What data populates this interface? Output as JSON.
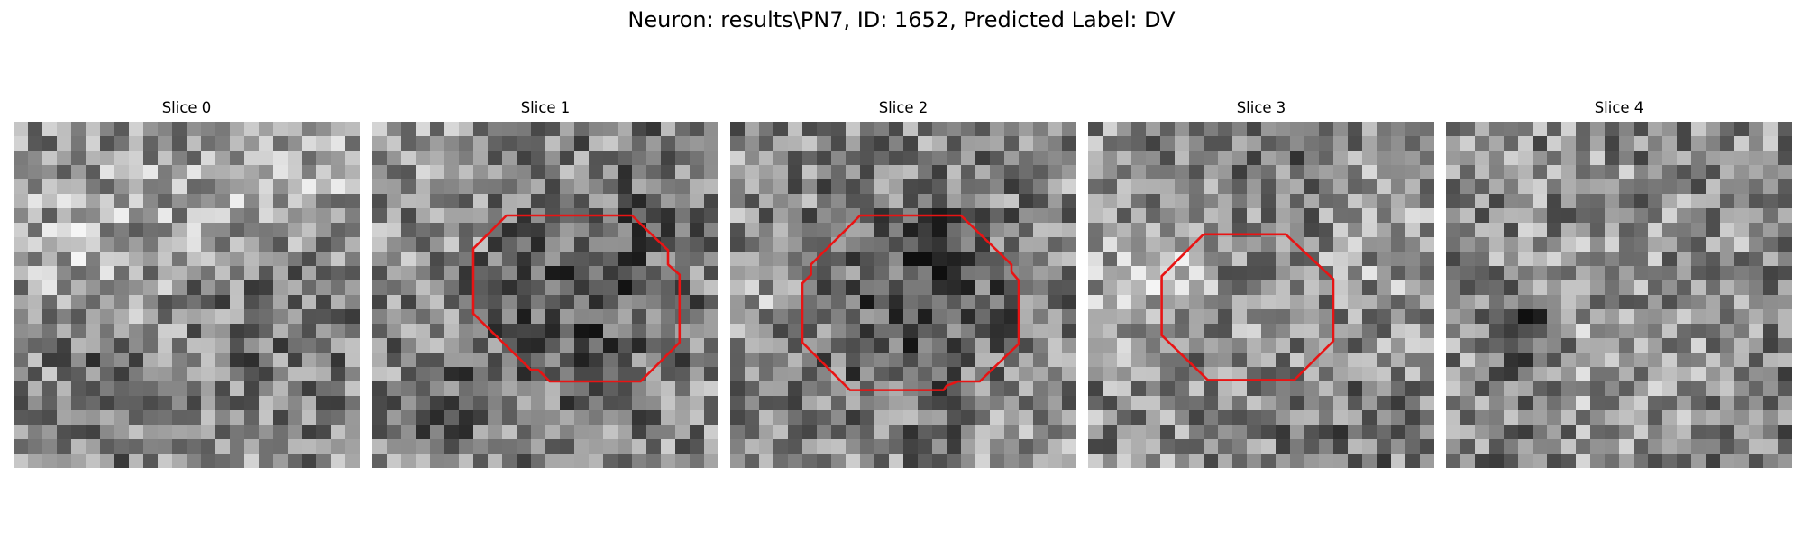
{
  "figure": {
    "title": "Neuron: results\\PN7, ID: 1652, Predicted Label: DV"
  },
  "panels": [
    {
      "title": "Slice 0",
      "contour": null
    },
    {
      "title": "Slice 1",
      "contour": [
        [
          13.5,
          6.5
        ],
        [
          18.0,
          6.5
        ],
        [
          20.5,
          8.9
        ],
        [
          20.5,
          9.9
        ],
        [
          21.3,
          10.6
        ],
        [
          21.3,
          15.3
        ],
        [
          18.6,
          18.0
        ],
        [
          12.3,
          18.0
        ],
        [
          11.5,
          17.2
        ],
        [
          11.0,
          17.2
        ],
        [
          7.0,
          13.3
        ],
        [
          7.0,
          8.8
        ],
        [
          9.3,
          6.5
        ]
      ]
    },
    {
      "title": "Slice 2",
      "contour": [
        [
          9.1,
          6.5
        ],
        [
          16.0,
          6.5
        ],
        [
          19.5,
          9.9
        ],
        [
          19.5,
          10.4
        ],
        [
          20.0,
          11.0
        ],
        [
          20.0,
          15.4
        ],
        [
          17.3,
          18.0
        ],
        [
          15.8,
          18.0
        ],
        [
          15.0,
          18.3
        ],
        [
          14.8,
          18.6
        ],
        [
          8.3,
          18.6
        ],
        [
          5.0,
          15.3
        ],
        [
          5.0,
          11.2
        ],
        [
          5.6,
          10.6
        ],
        [
          5.6,
          9.9
        ],
        [
          9.0,
          6.5
        ]
      ]
    },
    {
      "title": "Slice 3",
      "contour": [
        [
          8.0,
          7.8
        ],
        [
          13.7,
          7.8
        ],
        [
          17.0,
          10.9
        ],
        [
          17.0,
          15.2
        ],
        [
          14.3,
          17.9
        ],
        [
          8.3,
          17.9
        ],
        [
          5.1,
          14.8
        ],
        [
          5.1,
          10.7
        ]
      ]
    },
    {
      "title": "Slice 4",
      "contour": null
    }
  ],
  "style": {
    "contour_color": "#e81414"
  }
}
